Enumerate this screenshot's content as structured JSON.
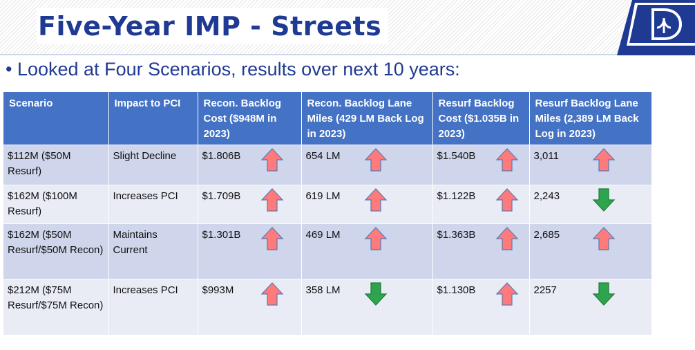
{
  "header": {
    "title": "Five-Year IMP - Streets",
    "bullet": "Looked at Four Scenarios, results over next 10 years:"
  },
  "colors": {
    "accent": "#1f3a93",
    "table_header": "#4472c4",
    "row_odd": "#cfd5ea",
    "row_even": "#e9ebf5",
    "arrow_up": "#ff7b7b",
    "arrow_down": "#2ea44f"
  },
  "table": {
    "headers": [
      "Scenario",
      "Impact to PCI",
      "Recon. Backlog Cost ($948M in 2023)",
      "Recon. Backlog Lane Miles (429 LM Back Log in 2023)",
      "Resurf  Backlog Cost ($1.035B in 2023)",
      "Resurf Backlog Lane Miles (2,389 LM Back Log in 2023)"
    ],
    "rows": [
      {
        "scenario": "$112M ($50M Resurf)",
        "impact": "Slight Decline",
        "recon_cost": "$1.806B",
        "recon_cost_trend": "up-arrow-icon",
        "recon_lm": "654 LM",
        "recon_lm_trend": "up-arrow-icon",
        "resurf_cost": "$1.540B",
        "resurf_cost_trend": "up-arrow-icon",
        "resurf_lm": "3,011",
        "resurf_lm_trend": "up-arrow-icon"
      },
      {
        "scenario": "$162M ($100M Resurf)",
        "impact": "Increases PCI",
        "recon_cost": "$1.709B",
        "recon_cost_trend": "up-arrow-icon",
        "recon_lm": "619 LM",
        "recon_lm_trend": "up-arrow-icon",
        "resurf_cost": "$1.122B",
        "resurf_cost_trend": "up-arrow-icon",
        "resurf_lm": "2,243",
        "resurf_lm_trend": "down-arrow-icon"
      },
      {
        "scenario": "$162M ($50M Resurf/$50M Recon)",
        "impact": "Maintains Current",
        "recon_cost": "$1.301B",
        "recon_cost_trend": "up-arrow-icon",
        "recon_lm": "469 LM",
        "recon_lm_trend": "up-arrow-icon",
        "resurf_cost": "$1.363B",
        "resurf_cost_trend": "up-arrow-icon",
        "resurf_lm": "2,685",
        "resurf_lm_trend": "up-arrow-icon"
      },
      {
        "scenario": "$212M ($75M Resurf/$75M Recon)",
        "impact": "Increases PCI",
        "recon_cost": "$993M",
        "recon_cost_trend": "up-arrow-icon",
        "recon_lm": "358 LM",
        "recon_lm_trend": "down-arrow-icon",
        "resurf_cost": "$1.130B",
        "resurf_cost_trend": "up-arrow-icon",
        "resurf_lm": "2257",
        "resurf_lm_trend": "down-arrow-icon"
      }
    ]
  }
}
